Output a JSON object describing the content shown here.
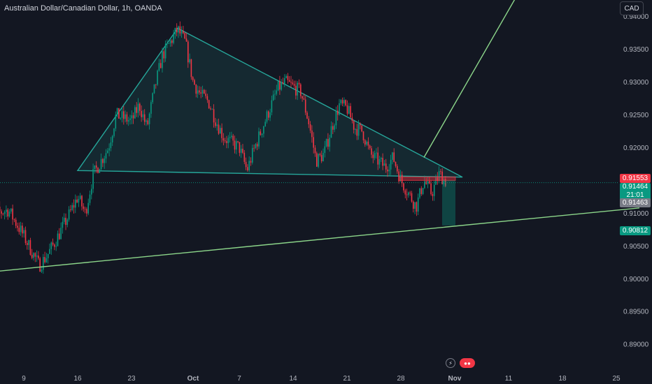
{
  "header": {
    "symbol_title": "Australian Dollar/Canadian Dollar, 1h, OANDA",
    "currency": "CAD"
  },
  "price_tags": {
    "ask": "0.91553",
    "last": "0.91464",
    "countdown": "21:01",
    "bid": "0.91463",
    "target": "0.90812"
  },
  "colors": {
    "background": "#131722",
    "up": "#089981",
    "down": "#f23645",
    "pattern_line": "#26a69a",
    "trend_line": "#8cd68a",
    "axis_text": "#b2b5be"
  },
  "bottom_icons": [
    "lightning-icon",
    "news-icon"
  ],
  "chart_data": {
    "type": "candlestick",
    "x_ticks": [
      "9",
      "16",
      "23",
      "Oct",
      "7",
      "14",
      "21",
      "28",
      "Nov",
      "11",
      "18",
      "25"
    ],
    "y_ticks": [
      "0.94000",
      "0.93500",
      "0.93000",
      "0.92500",
      "0.92000",
      "0.91500",
      "0.91000",
      "0.90500",
      "0.90000",
      "0.89500",
      "0.89000"
    ],
    "ylim": [
      0.888,
      0.9425
    ],
    "last_price": 0.91464,
    "ask_price": 0.91553,
    "bid_price": 0.91463,
    "target_price": 0.90812,
    "grid": false,
    "price_path": [
      [
        "09-04",
        0.9095
      ],
      [
        "09-07",
        0.9105
      ],
      [
        "09-09",
        0.9065
      ],
      [
        "09-11",
        0.902
      ],
      [
        "09-12",
        0.9035
      ],
      [
        "09-13",
        0.9055
      ],
      [
        "09-15",
        0.91
      ],
      [
        "09-16",
        0.9125
      ],
      [
        "09-17",
        0.91
      ],
      [
        "09-18",
        0.9158
      ],
      [
        "09-20",
        0.92
      ],
      [
        "09-21",
        0.925
      ],
      [
        "09-23",
        0.924
      ],
      [
        "09-24",
        0.9265
      ],
      [
        "09-25",
        0.923
      ],
      [
        "09-26",
        0.929
      ],
      [
        "09-27",
        0.934
      ],
      [
        "09-29",
        0.938
      ],
      [
        "09-30",
        0.936
      ],
      [
        "10-01",
        0.93
      ],
      [
        "10-02",
        0.928
      ],
      [
        "10-03",
        0.927
      ],
      [
        "10-04",
        0.924
      ],
      [
        "10-05",
        0.9215
      ],
      [
        "10-07",
        0.92
      ],
      [
        "10-08",
        0.9165
      ],
      [
        "10-09",
        0.92
      ],
      [
        "10-11",
        0.926
      ],
      [
        "10-12",
        0.929
      ],
      [
        "10-13",
        0.93
      ],
      [
        "10-15",
        0.9285
      ],
      [
        "10-16",
        0.924
      ],
      [
        "10-17",
        0.918
      ],
      [
        "10-18",
        0.919
      ],
      [
        "10-19",
        0.923
      ],
      [
        "10-20",
        0.9265
      ],
      [
        "10-21",
        0.926
      ],
      [
        "10-22",
        0.923
      ],
      [
        "10-23",
        0.9225
      ],
      [
        "10-24",
        0.919
      ],
      [
        "10-25",
        0.918
      ],
      [
        "10-26",
        0.917
      ],
      [
        "10-27",
        0.9185
      ],
      [
        "10-28",
        0.915
      ],
      [
        "10-29",
        0.913
      ],
      [
        "10-30",
        0.911
      ],
      [
        "10-31",
        0.915
      ],
      [
        "11-01",
        0.913
      ],
      [
        "11-02",
        0.916
      ],
      [
        "11-03",
        0.9146
      ]
    ],
    "annotations": [
      {
        "kind": "triangle",
        "apexes": [
          [
            "09-16",
            0.9165
          ],
          [
            "09-29",
            0.9382
          ],
          [
            "11-05",
            0.9155
          ]
        ]
      },
      {
        "kind": "trend_line",
        "from": [
          "08-25",
          0.8998
        ],
        "to": [
          "11-28",
          0.9108
        ]
      },
      {
        "kind": "trend_line",
        "from": [
          "10-31",
          0.9185
        ],
        "to": [
          "11-12",
          0.943
        ]
      },
      {
        "kind": "short_position",
        "entry": 0.915,
        "stop": 0.91553,
        "target": 0.90812
      }
    ]
  }
}
